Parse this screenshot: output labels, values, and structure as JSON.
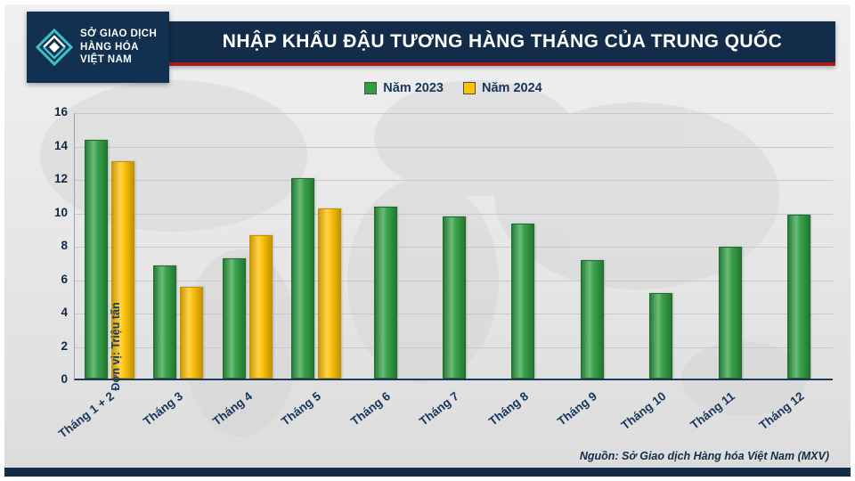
{
  "header": {
    "logo": {
      "line1": "SỞ GIAO DỊCH",
      "line2": "HÀNG HÓA",
      "line3": "VIỆT NAM"
    },
    "title": "NHẬP KHẨU ĐẬU TƯƠNG HÀNG THÁNG CỦA TRUNG QUỐC"
  },
  "footer": {
    "source": "Nguồn: Sở Giao dịch Hàng hóa Việt Nam (MXV)"
  },
  "chart_data": {
    "type": "bar",
    "title": "NHẬP KHẨU ĐẬU TƯƠNG HÀNG THÁNG CỦA TRUNG QUỐC",
    "ylabel": "Đơn vị: Triệu tấn",
    "ylim": [
      0,
      16
    ],
    "yticks": [
      0,
      2,
      4,
      6,
      8,
      10,
      12,
      14,
      16
    ],
    "grid": true,
    "legend_position": "top-center",
    "categories": [
      "Tháng 1 + 2",
      "Tháng 3",
      "Tháng 4",
      "Tháng 5",
      "Tháng 6",
      "Tháng 7",
      "Tháng 8",
      "Tháng 9",
      "Tháng 10",
      "Tháng 11",
      "Tháng 12"
    ],
    "series": [
      {
        "name": "Năm 2023",
        "color": "#2f9e41",
        "border": "#1d6e2c",
        "values": [
          14.3,
          6.8,
          7.2,
          12.0,
          10.3,
          9.7,
          9.3,
          7.1,
          5.1,
          7.9,
          9.8
        ]
      },
      {
        "name": "Năm 2024",
        "color": "#ffc000",
        "border": "#c98f00",
        "values": [
          13.0,
          5.5,
          8.6,
          10.2,
          null,
          null,
          null,
          null,
          null,
          null,
          null
        ]
      }
    ]
  }
}
